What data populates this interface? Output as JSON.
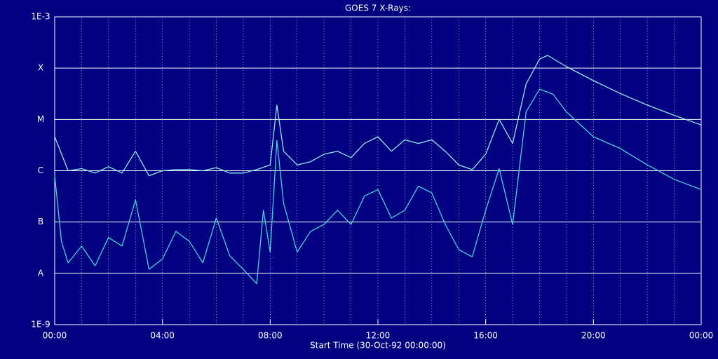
{
  "chart_data": {
    "type": "line",
    "title": "GOES 7 X-Rays:",
    "xlabel": "Start Time (30-Oct-92 00:00:00)",
    "log_y": true,
    "grid": true,
    "xlim": [
      0,
      24
    ],
    "xticks": [
      {
        "value": 0,
        "label": "00:00"
      },
      {
        "value": 4,
        "label": "04:00"
      },
      {
        "value": 8,
        "label": "08:00"
      },
      {
        "value": 12,
        "label": "12:00"
      },
      {
        "value": 16,
        "label": "16:00"
      },
      {
        "value": 20,
        "label": "20:00"
      },
      {
        "value": 24,
        "label": "00:00"
      }
    ],
    "ylim": [
      1e-09,
      0.001
    ],
    "yticks": [
      {
        "value": 1e-09,
        "label": "1E-9"
      },
      {
        "value": 1e-08,
        "label": "A"
      },
      {
        "value": 1e-07,
        "label": "B"
      },
      {
        "value": 1e-06,
        "label": "C"
      },
      {
        "value": 1e-05,
        "label": "M"
      },
      {
        "value": 0.0001,
        "label": "X"
      },
      {
        "value": 0.001,
        "label": "1E-3"
      }
    ],
    "series": [
      {
        "color": "#8ceef2",
        "x": [
          0,
          0.5,
          1,
          1.5,
          2,
          2.5,
          3,
          3.5,
          4,
          4.5,
          5,
          5.5,
          6,
          6.5,
          7,
          7.5,
          8,
          8.25,
          8.5,
          9,
          9.5,
          10,
          10.5,
          11,
          11.5,
          12,
          12.5,
          13,
          13.5,
          14,
          14.5,
          15,
          15.5,
          16,
          16.5,
          17,
          17.5,
          18,
          18.3,
          19,
          20,
          21,
          22,
          23,
          24
        ],
        "values": [
          4.6e-06,
          1e-06,
          1.1e-06,
          9e-07,
          1.2e-06,
          9e-07,
          2.4e-06,
          8e-07,
          1e-06,
          1.05e-06,
          1.05e-06,
          1e-06,
          1.15e-06,
          9e-07,
          9e-07,
          1.05e-06,
          1.3e-06,
          1.9e-05,
          2.4e-06,
          1.3e-06,
          1.5e-06,
          2.1e-06,
          2.4e-06,
          1.8e-06,
          3.4e-06,
          4.6e-06,
          2.4e-06,
          4e-06,
          3.4e-06,
          4e-06,
          2.4e-06,
          1.3e-06,
          1.05e-06,
          2.1e-06,
          1e-05,
          3.4e-06,
          4.9e-05,
          0.00015,
          0.000177,
          0.000107,
          5.7e-05,
          3.2e-05,
          1.9e-05,
          1.2e-05,
          7.8e-06
        ]
      },
      {
        "color": "#3cd8e2",
        "x": [
          0,
          0.25,
          0.5,
          1,
          1.5,
          2,
          2.5,
          3,
          3.5,
          4,
          4.5,
          5,
          5.5,
          6,
          6.5,
          7,
          7.5,
          7.75,
          8,
          8.25,
          8.5,
          9,
          9.5,
          10,
          10.5,
          11,
          11.5,
          12,
          12.5,
          13,
          13.5,
          14,
          14.5,
          15,
          15.5,
          16,
          16.5,
          17,
          17.5,
          18,
          18.5,
          19,
          20,
          21,
          22,
          23,
          24
        ],
        "values": [
          8e-07,
          4.2e-08,
          1.6e-08,
          3.4e-08,
          1.4e-08,
          5e-08,
          3.4e-08,
          2.7e-07,
          1.2e-08,
          1.9e-08,
          6.6e-08,
          4.2e-08,
          1.6e-08,
          1.2e-07,
          2.2e-08,
          1.2e-08,
          6.3e-09,
          1.7e-07,
          2.6e-08,
          3.9e-06,
          2.3e-07,
          2.6e-08,
          6.6e-08,
          9e-08,
          1.7e-07,
          9e-08,
          3.2e-07,
          4.3e-07,
          1.2e-07,
          1.7e-07,
          5e-07,
          3.7e-07,
          9e-08,
          2.9e-08,
          2.1e-08,
          1.7e-07,
          1.1e-06,
          9e-08,
          1.4e-05,
          3.9e-05,
          3.1e-05,
          1.4e-05,
          4.6e-06,
          2.7e-06,
          1.3e-06,
          6.8e-07,
          4.3e-07
        ]
      }
    ]
  }
}
